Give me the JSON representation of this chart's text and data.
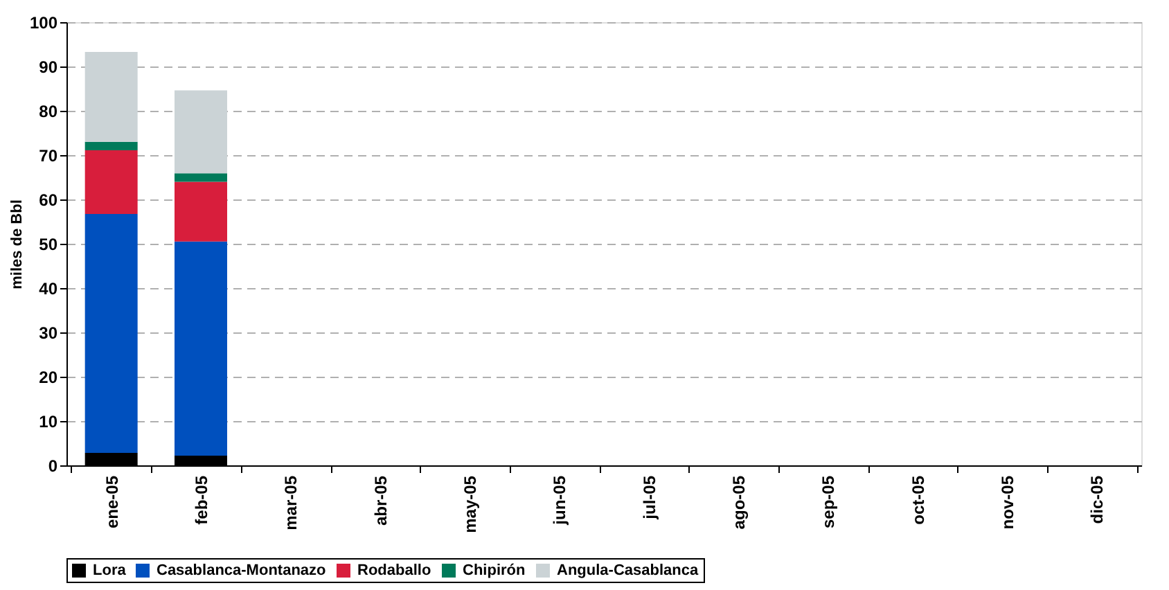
{
  "chart_data": {
    "type": "bar",
    "stacked": true,
    "ylabel": "miles de Bbl",
    "categories": [
      "ene-05",
      "feb-05",
      "mar-05",
      "abr-05",
      "may-05",
      "jun-05",
      "jul-05",
      "ago-05",
      "sep-05",
      "oct-05",
      "nov-05",
      "dic-05"
    ],
    "series": [
      {
        "name": "Lora",
        "color": "#000000",
        "values": [
          2.8,
          2.2,
          null,
          null,
          null,
          null,
          null,
          null,
          null,
          null,
          null,
          null
        ]
      },
      {
        "name": "Casablanca-Montanazo",
        "color": "#0050be",
        "values": [
          53.9,
          48.3,
          null,
          null,
          null,
          null,
          null,
          null,
          null,
          null,
          null,
          null
        ]
      },
      {
        "name": "Rodaballo",
        "color": "#d81e3c",
        "values": [
          14.4,
          13.5,
          null,
          null,
          null,
          null,
          null,
          null,
          null,
          null,
          null,
          null
        ]
      },
      {
        "name": "Chipirón",
        "color": "#007a5a",
        "values": [
          1.9,
          1.9,
          null,
          null,
          null,
          null,
          null,
          null,
          null,
          null,
          null,
          null
        ]
      },
      {
        "name": "Angula-Casablanca",
        "color": "#cbd3d6",
        "values": [
          20.3,
          18.7,
          null,
          null,
          null,
          null,
          null,
          null,
          null,
          null,
          null,
          null
        ]
      }
    ],
    "ylim": [
      0,
      100
    ],
    "yticks": [
      0,
      10,
      20,
      30,
      40,
      50,
      60,
      70,
      80,
      90,
      100
    ],
    "grid": "y",
    "legend": "bottom"
  }
}
